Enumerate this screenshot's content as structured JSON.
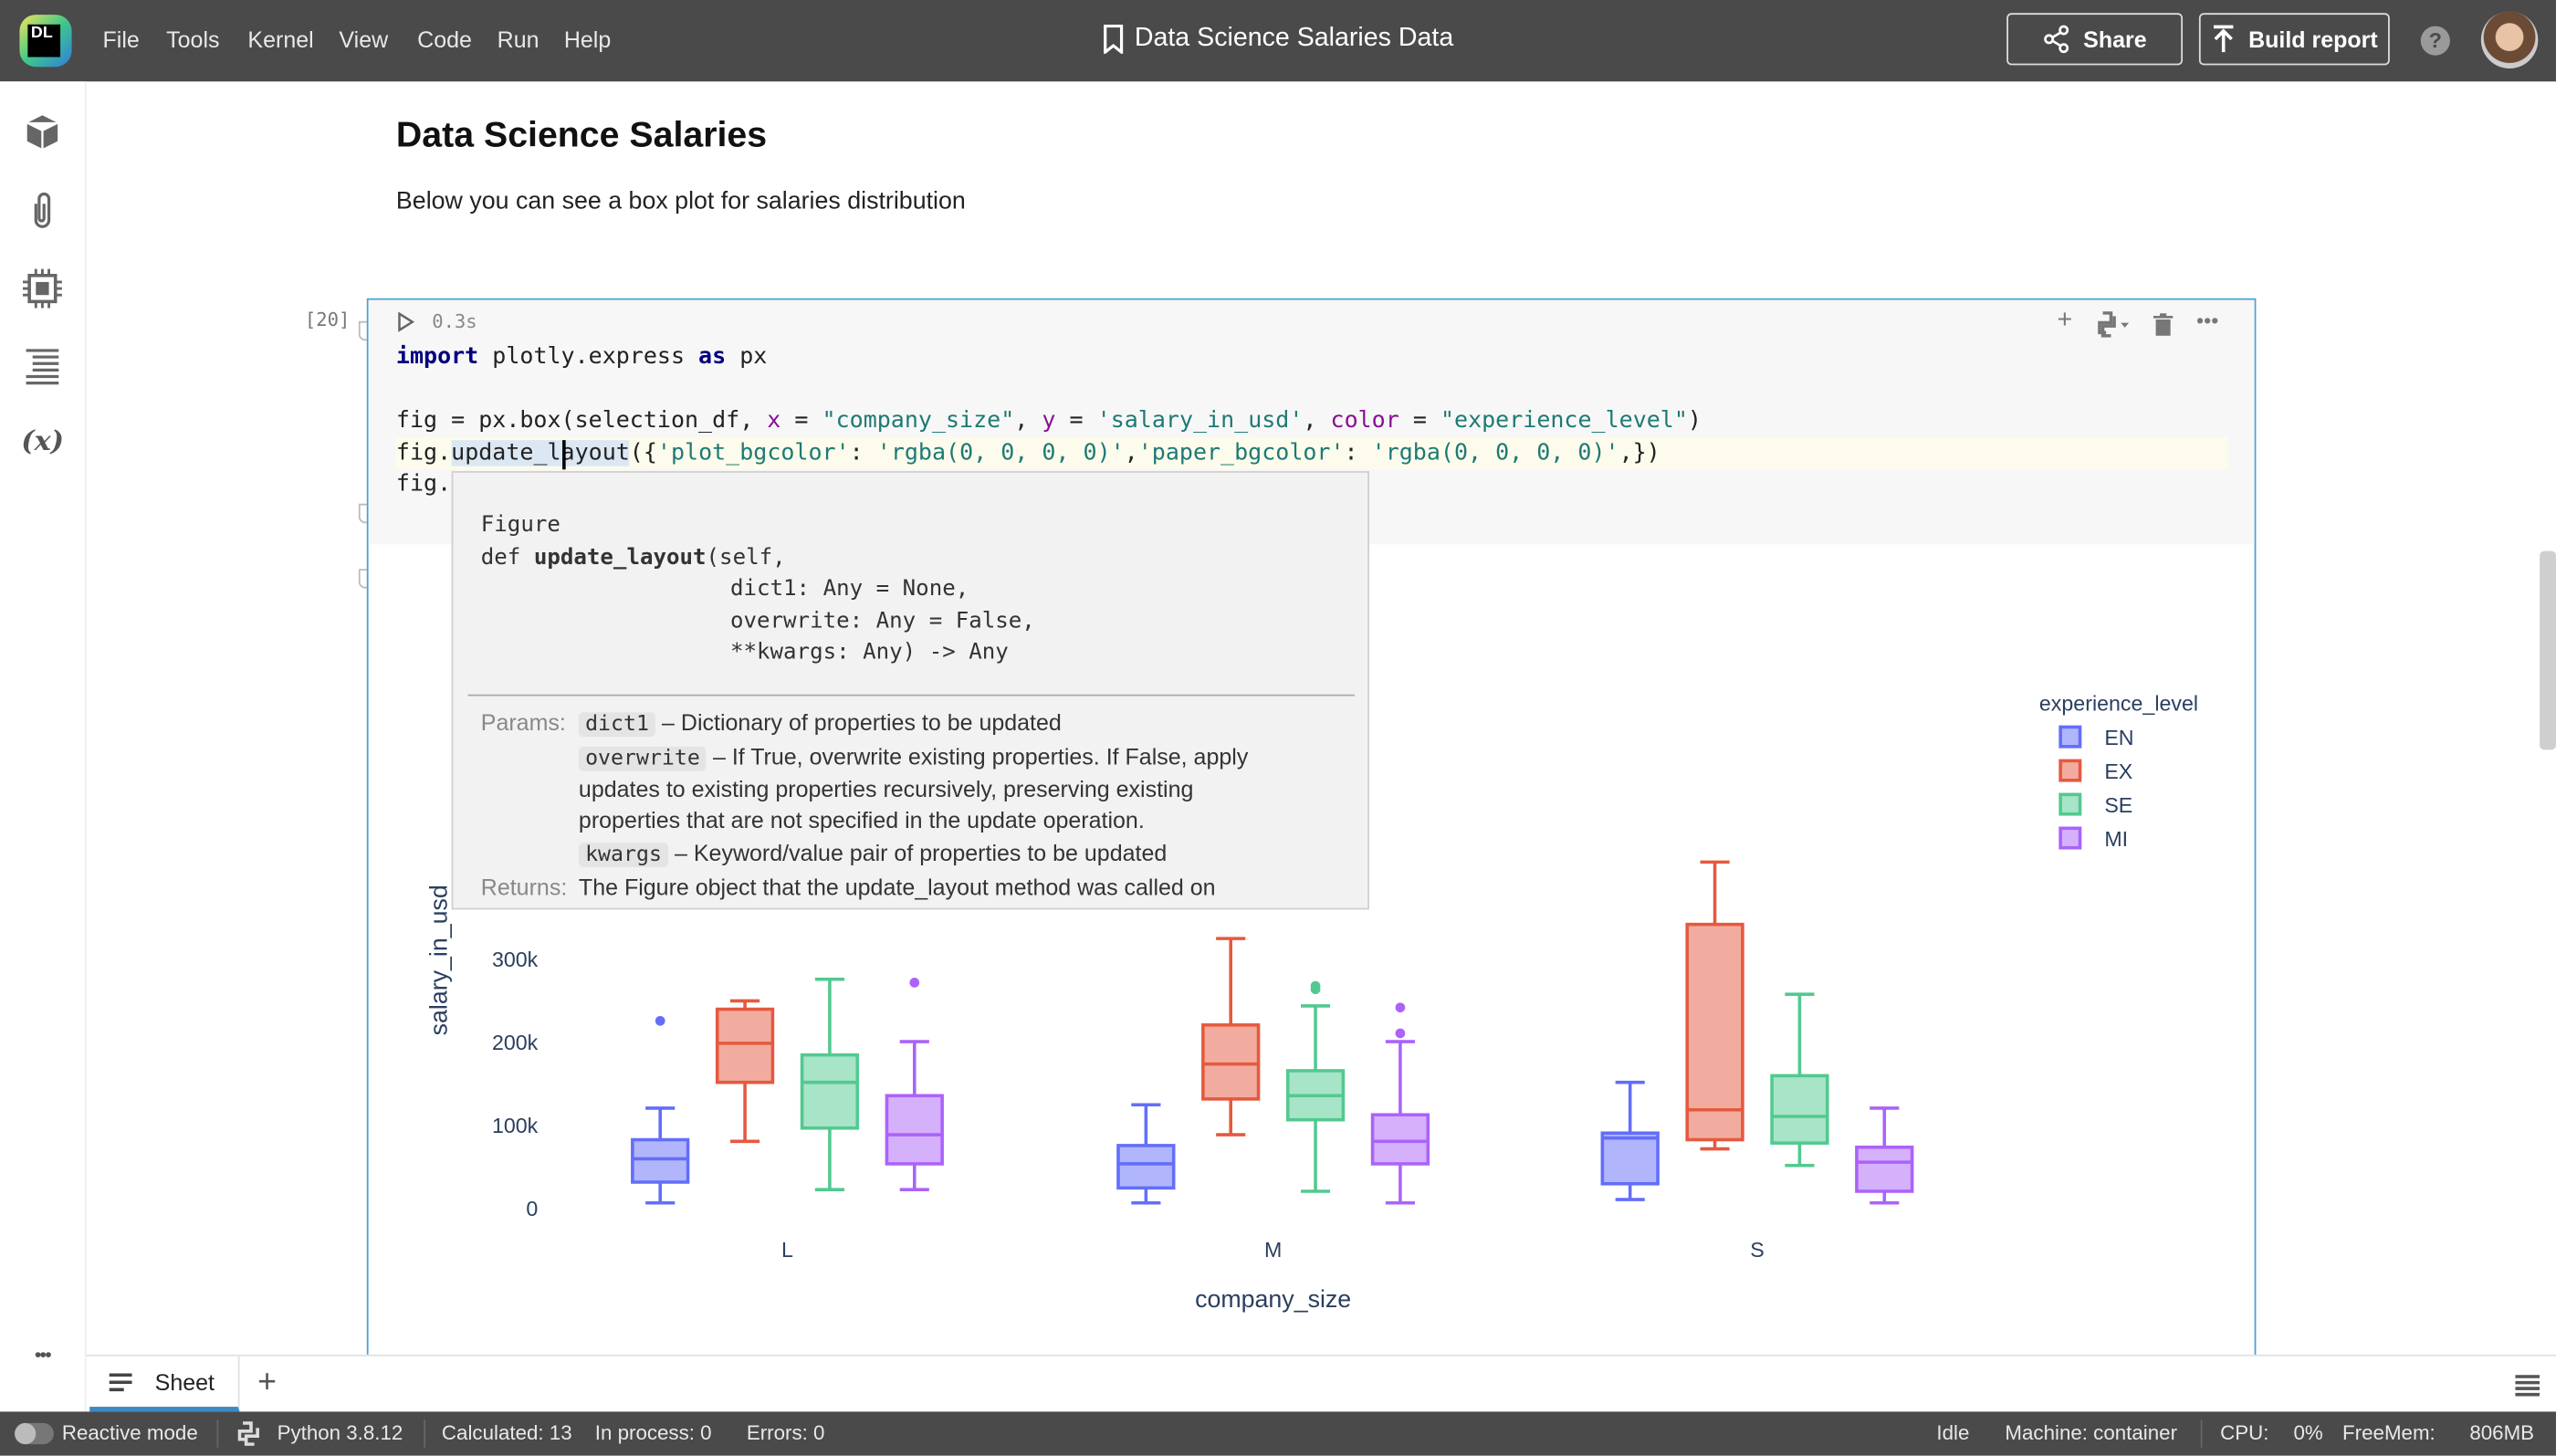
{
  "topbar": {
    "logo": "DL",
    "menu": [
      "File",
      "Tools",
      "Kernel",
      "View",
      "Code",
      "Run",
      "Help"
    ],
    "title": "Data Science Salaries Data",
    "share": "Share",
    "build_report": "Build report",
    "help": "?"
  },
  "sidebar": {
    "icons": [
      "package-icon",
      "paperclip-icon",
      "chip-icon",
      "list-icon",
      "variables-icon"
    ],
    "variables_label": "(x)",
    "more": "•••"
  },
  "doc": {
    "heading": "Data Science Salaries",
    "paragraph": "Below you can see a box plot for salaries distribution"
  },
  "cell": {
    "exec_count": "[20]",
    "duration": "0.3s",
    "code": {
      "l1a": "import",
      "l1b": " plotly.express ",
      "l1c": "as",
      "l1d": " px",
      "l2a": "fig = px.box(selection_df, ",
      "l2b": "x",
      "l2c": " = ",
      "l2d": "\"company_size\"",
      "l2e": ", ",
      "l2f": "y",
      "l2g": " = ",
      "l2h": "'salary_in_usd'",
      "l2i": ", ",
      "l2j": "color",
      "l2k": " = ",
      "l2l": "\"experience_level\"",
      "l2m": ")",
      "l3a": "fig.",
      "l3b": "update_layout",
      "l3c": "({",
      "l3d": "'plot_bgcolor'",
      "l3e": ": ",
      "l3f": "'rgba(0, 0, 0, 0)'",
      "l3g": ",",
      "l3h": "'paper_bgcolor'",
      "l3i": ": ",
      "l3j": "'rgba(0, 0, 0, 0)'",
      "l3k": ",})",
      "l4": "fig."
    }
  },
  "tooltip": {
    "class": "Figure",
    "def_kw": "def ",
    "def_name": "update_layout",
    "def_rest": "(self,",
    "p1": "dict1: Any = None,",
    "p2": "overwrite: Any = False,",
    "p3": "**kwargs: Any) -> Any",
    "params_label": "Params:",
    "dict1": "dict1",
    "dict1_desc": "– Dictionary of properties to be updated",
    "overwrite": "overwrite",
    "overwrite_desc1": "– If True, overwrite existing properties. If False, apply",
    "overwrite_desc2": "updates to existing properties recursively, preserving existing",
    "overwrite_desc3": "properties that are not specified in the update operation.",
    "kwargs": "kwargs",
    "kwargs_desc": "– Keyword/value pair of properties to be updated",
    "returns_label": "Returns:",
    "returns_desc": "The Figure object that the update_layout method was called on"
  },
  "chart_data": {
    "type": "box",
    "xlabel": "company_size",
    "ylabel": "salary_in_usd",
    "categories": [
      "L",
      "M",
      "S"
    ],
    "yticks": [
      0,
      100000,
      200000,
      300000
    ],
    "ytick_labels": [
      "0",
      "100k",
      "200k",
      "300k"
    ],
    "ylim": [
      0,
      420000
    ],
    "legend": {
      "title": "experience_level",
      "placement": "right"
    },
    "series": [
      {
        "name": "EN",
        "color": "#636efa",
        "boxes": [
          {
            "min": 6000,
            "q1": 31000,
            "median": 59000,
            "q3": 82000,
            "max": 120000,
            "outliers": [
              225000
            ]
          },
          {
            "min": 6000,
            "q1": 24000,
            "median": 53000,
            "q3": 75000,
            "max": 124000,
            "outliers": []
          },
          {
            "min": 10000,
            "q1": 29000,
            "median": 84000,
            "q3": 90000,
            "max": 151000,
            "outliers": []
          }
        ]
      },
      {
        "name": "EX",
        "color": "#e5593f",
        "boxes": [
          {
            "min": 80000,
            "q1": 151000,
            "median": 198000,
            "q3": 239000,
            "max": 249000,
            "outliers": []
          },
          {
            "min": 88000,
            "q1": 131000,
            "median": 173000,
            "q3": 220000,
            "max": 324000,
            "outliers": []
          },
          {
            "min": 71000,
            "q1": 82000,
            "median": 118000,
            "q3": 341000,
            "max": 416000,
            "outliers": []
          }
        ]
      },
      {
        "name": "SE",
        "color": "#52c990",
        "boxes": [
          {
            "min": 22000,
            "q1": 96000,
            "median": 151000,
            "q3": 184000,
            "max": 275000,
            "outliers": []
          },
          {
            "min": 20000,
            "q1": 106000,
            "median": 135000,
            "q3": 165000,
            "max": 243000,
            "outliers": [
              267000,
              263000
            ]
          },
          {
            "min": 51000,
            "q1": 78000,
            "median": 110000,
            "q3": 159000,
            "max": 257000,
            "outliers": []
          }
        ]
      },
      {
        "name": "MI",
        "color": "#ab63fa",
        "boxes": [
          {
            "min": 22000,
            "q1": 53000,
            "median": 88000,
            "q3": 135000,
            "max": 200000,
            "outliers": [
              271000
            ]
          },
          {
            "min": 6000,
            "q1": 53000,
            "median": 80000,
            "q3": 112000,
            "max": 200000,
            "outliers": [
              241000,
              210000
            ]
          },
          {
            "min": 6000,
            "q1": 20000,
            "median": 55000,
            "q3": 73000,
            "max": 120000,
            "outliers": []
          }
        ]
      }
    ]
  },
  "bottom": {
    "tab": "Sheet",
    "add": "+"
  },
  "status": {
    "reactive": "Reactive mode",
    "python": "Python 3.8.12",
    "calculated": "Calculated: 13",
    "in_process": "In process: 0",
    "errors": "Errors: 0",
    "idle": "Idle",
    "machine": "Machine: container",
    "cpu_label": "CPU:",
    "cpu": "0%",
    "freemem_label": "FreeMem:",
    "freemem": "806MB"
  }
}
